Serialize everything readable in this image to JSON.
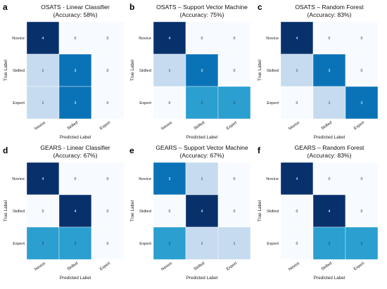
{
  "chart_data": [
    {
      "type": "heatmap",
      "panel": "a",
      "title": "OSATS - Linear Classifier",
      "subtitle": "(Accuracy: 58%)",
      "xlabel": "Predicted Label",
      "ylabel": "True Label",
      "x_categories": [
        "Novice",
        "Skilled",
        "Expert"
      ],
      "y_categories": [
        "Novice",
        "Skilled",
        "Expert"
      ],
      "values": [
        [
          4,
          0,
          0
        ],
        [
          1,
          3,
          0
        ],
        [
          1,
          3,
          0
        ]
      ]
    },
    {
      "type": "heatmap",
      "panel": "b",
      "title": "OSATS – Support Vector Machine",
      "subtitle": "(Accuracy: 75%)",
      "xlabel": "Predicted Label",
      "ylabel": "True Label",
      "x_categories": [
        "Novice",
        "Skilled",
        "Expert"
      ],
      "y_categories": [
        "Novice",
        "Skilled",
        "Expert"
      ],
      "values": [
        [
          4,
          0,
          0
        ],
        [
          1,
          3,
          0
        ],
        [
          0,
          2,
          2
        ]
      ]
    },
    {
      "type": "heatmap",
      "panel": "c",
      "title": "OSATS – Random Forest",
      "subtitle": "(Accuracy: 83%)",
      "xlabel": "Predicted Label",
      "ylabel": "True Label",
      "x_categories": [
        "Novice",
        "Skilled",
        "Expert"
      ],
      "y_categories": [
        "Novice",
        "Skilled",
        "Expert"
      ],
      "values": [
        [
          4,
          0,
          0
        ],
        [
          1,
          3,
          0
        ],
        [
          0,
          1,
          3
        ]
      ]
    },
    {
      "type": "heatmap",
      "panel": "d",
      "title": "GEARS - Linear Classifier",
      "subtitle": "(Accuracy: 67%)",
      "xlabel": "Predicted Label",
      "ylabel": "True Label",
      "x_categories": [
        "Novice",
        "Skilled",
        "Expert"
      ],
      "y_categories": [
        "Novice",
        "Skilled",
        "Expert"
      ],
      "values": [
        [
          4,
          0,
          0
        ],
        [
          0,
          4,
          0
        ],
        [
          2,
          2,
          0
        ]
      ]
    },
    {
      "type": "heatmap",
      "panel": "e",
      "title": "GEARS – Support Vector Machine",
      "subtitle": "(Accuracy: 67%)",
      "xlabel": "Predicted Label",
      "ylabel": "True Label",
      "x_categories": [
        "Novice",
        "Skilled",
        "Expert"
      ],
      "y_categories": [
        "Novice",
        "Skilled",
        "Expert"
      ],
      "values": [
        [
          3,
          1,
          0
        ],
        [
          0,
          4,
          0
        ],
        [
          2,
          1,
          1
        ]
      ]
    },
    {
      "type": "heatmap",
      "panel": "f",
      "title": "GEARS – Random Forest",
      "subtitle": "(Accuracy: 83%)",
      "xlabel": "Predicted Label",
      "ylabel": "True Label",
      "x_categories": [
        "Novice",
        "Skilled",
        "Expert"
      ],
      "y_categories": [
        "Novice",
        "Skilled",
        "Expert"
      ],
      "values": [
        [
          4,
          0,
          0
        ],
        [
          0,
          4,
          0
        ],
        [
          0,
          2,
          2
        ]
      ]
    }
  ],
  "colors": {
    "cell_0": "#f7fbff",
    "cell_1": "#c6dbef",
    "cell_2": "#2a9fd0",
    "cell_3": "#0a73b7",
    "cell_4": "#08306b",
    "grid_line": "#ffffff",
    "text_dark": "#333333",
    "text_light": "#ffffff"
  }
}
